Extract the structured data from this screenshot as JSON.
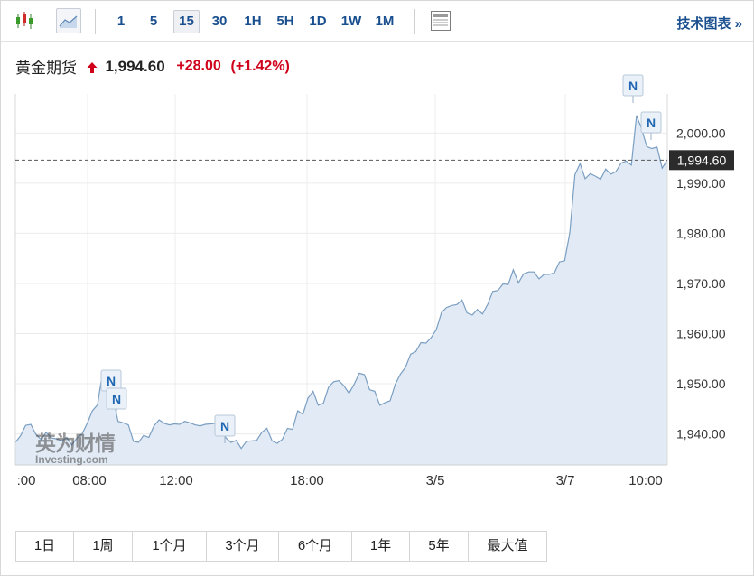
{
  "toolbar": {
    "timeframes": [
      "1",
      "5",
      "15",
      "30",
      "1H",
      "5H",
      "1D",
      "1W",
      "1M"
    ],
    "active_timeframe": "15",
    "tech_chart_link": "技术图表 »",
    "icons": [
      "candlestick-icon",
      "area-chart-icon",
      "layout-icon"
    ]
  },
  "quote": {
    "name": "黄金期货",
    "price": "1,994.60",
    "change": "+28.00",
    "change_pct": "(+1.42%)",
    "direction": "up",
    "up_color": "#d0021b"
  },
  "watermark": {
    "cn": "英为财情",
    "en": "Investing.com"
  },
  "range_buttons": [
    "1日",
    "1周",
    "1个月",
    "3个月",
    "6个月",
    "1年",
    "5年",
    "最大值"
  ],
  "chart_data": {
    "type": "area",
    "title": "",
    "xlabel": "",
    "ylabel": "",
    "x_tick_labels": [
      ":00",
      "08:00",
      "12:00",
      "18:00",
      "3/5",
      "3/7",
      "10:00"
    ],
    "y_tick_labels": [
      "1,940.00",
      "1,950.00",
      "1,960.00",
      "1,970.00",
      "1,980.00",
      "1,990.00",
      "2,000.00"
    ],
    "ylim": [
      1933.8,
      2007.8
    ],
    "grid": true,
    "current_value": 1994.6,
    "current_label": "1,994.60",
    "series": [
      {
        "values": [
          1938.3,
          1939.6,
          1941.7,
          1941.9,
          1939.9,
          1938.9,
          1940.3,
          1939.2,
          1939.0,
          1938.6,
          1939.3,
          1937.8,
          1939.2,
          1940.0,
          1942.1,
          1944.6,
          1945.8,
          1952.4,
          1949.9,
          1947.6,
          1942.5,
          1942.2,
          1941.8,
          1938.5,
          1938.3,
          1939.7,
          1939.3,
          1941.6,
          1942.8,
          1942.1,
          1941.8,
          1942.0,
          1941.9,
          1942.5,
          1942.2,
          1941.8,
          1941.6,
          1941.9,
          1942.0,
          1942.1,
          1941.6,
          1939.2,
          1938.3,
          1938.7,
          1937.1,
          1938.5,
          1938.6,
          1938.7,
          1940.3,
          1941.1,
          1938.6,
          1938.1,
          1938.9,
          1941.1,
          1940.9,
          1944.6,
          1943.9,
          1947.1,
          1948.5,
          1945.7,
          1946.1,
          1949.3,
          1950.4,
          1950.6,
          1949.6,
          1948.1,
          1949.9,
          1952.1,
          1951.8,
          1948.8,
          1948.5,
          1945.7,
          1946.2,
          1946.6,
          1949.9,
          1951.9,
          1953.3,
          1955.9,
          1956.4,
          1958.2,
          1958.1,
          1959.2,
          1960.8,
          1964.2,
          1965.2,
          1965.6,
          1965.8,
          1966.7,
          1964.1,
          1963.7,
          1964.8,
          1963.9,
          1965.8,
          1968.4,
          1968.6,
          1969.9,
          1969.8,
          1972.7,
          1970.1,
          1971.9,
          1972.3,
          1972.3,
          1970.9,
          1971.8,
          1971.8,
          1972.1,
          1974.3,
          1974.5,
          1980.1,
          1991.7,
          1993.9,
          1990.9,
          1991.9,
          1991.4,
          1990.8,
          1992.8,
          1991.8,
          1992.3,
          1994.0,
          1994.4,
          1993.6,
          2003.5,
          2000.8,
          1997.3,
          1996.9,
          1997.2,
          1993.0,
          1994.6
        ]
      }
    ],
    "news_markers": [
      "N",
      "N",
      "N",
      "N",
      "N"
    ],
    "colors": {
      "line": "#7a9ec2",
      "fill": "#e2ebf5",
      "grid": "#ececec",
      "current_tag_bg": "#2b2b2b",
      "marker_text": "#1f66b3"
    }
  }
}
